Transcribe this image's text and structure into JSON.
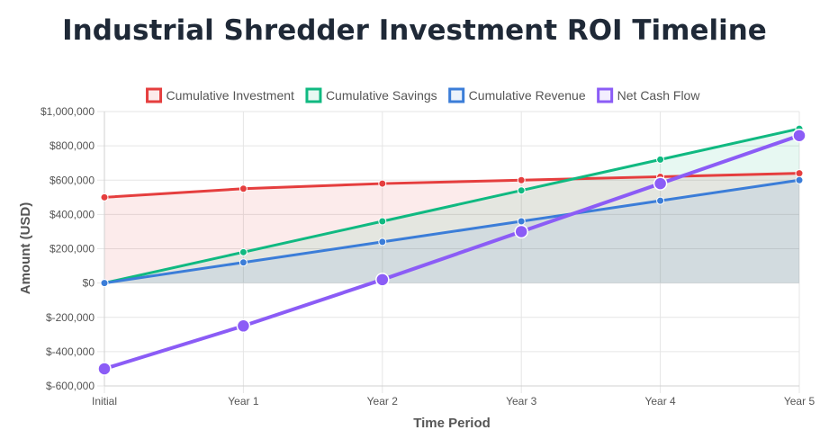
{
  "chart_data": {
    "type": "line",
    "title": "Industrial Shredder Investment ROI Timeline",
    "xlabel": "Time Period",
    "ylabel": "Amount (USD)",
    "categories": [
      "Initial",
      "Year 1",
      "Year 2",
      "Year 3",
      "Year 4",
      "Year 5"
    ],
    "ylim": [
      -600000,
      1000000
    ],
    "y_ticks": [
      1000000,
      800000,
      600000,
      400000,
      200000,
      0,
      -200000,
      -400000,
      -600000
    ],
    "y_tick_labels": [
      "$1,000,000",
      "$800,000",
      "$600,000",
      "$400,000",
      "$200,000",
      "$0",
      "$-200,000",
      "$-400,000",
      "$-600,000"
    ],
    "grid": true,
    "legend_position": "top",
    "series": [
      {
        "name": "Cumulative Investment",
        "values": [
          500000,
          550000,
          580000,
          600000,
          620000,
          640000
        ],
        "color": "#e53e3e",
        "fill": true
      },
      {
        "name": "Cumulative Savings",
        "values": [
          0,
          180000,
          360000,
          540000,
          720000,
          900000
        ],
        "color": "#10b981",
        "fill": true
      },
      {
        "name": "Cumulative Revenue",
        "values": [
          0,
          120000,
          240000,
          360000,
          480000,
          600000
        ],
        "color": "#3b7dd8",
        "fill": true
      },
      {
        "name": "Net Cash Flow",
        "values": [
          -500000,
          -250000,
          20000,
          300000,
          580000,
          860000
        ],
        "color": "#8b5cf6",
        "fill": false
      }
    ]
  }
}
